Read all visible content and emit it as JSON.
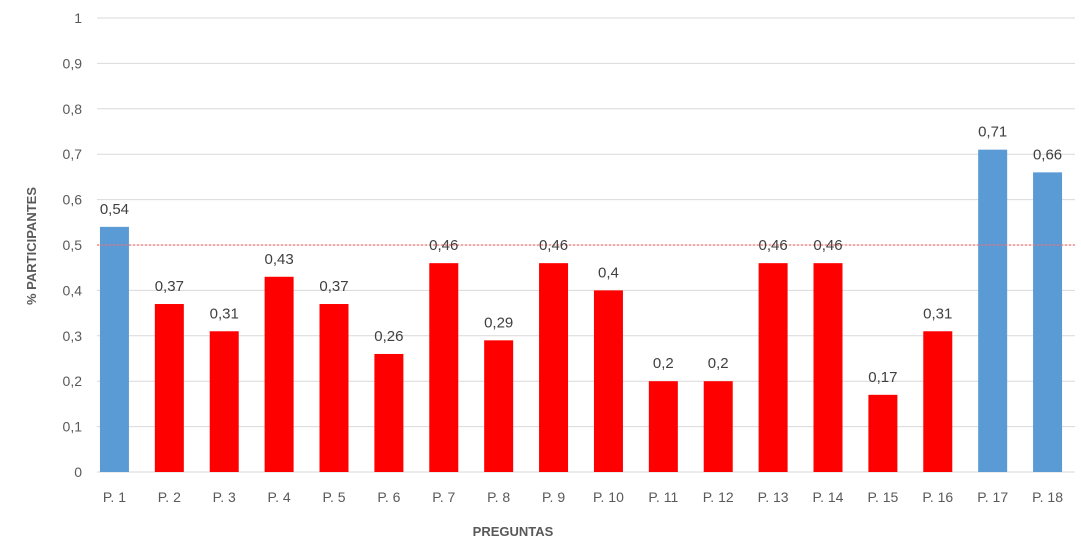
{
  "chart_data": {
    "type": "bar",
    "title": "",
    "xlabel": "PREGUNTAS",
    "ylabel": "% PARTICIPANTES",
    "categories": [
      "P. 1",
      "P. 2",
      "P. 3",
      "P. 4",
      "P. 5",
      "P. 6",
      "P. 7",
      "P. 8",
      "P. 9",
      "P. 10",
      "P. 11",
      "P. 12",
      "P. 13",
      "P. 14",
      "P. 15",
      "P. 16",
      "P. 17",
      "P. 18"
    ],
    "values": [
      0.54,
      0.37,
      0.31,
      0.43,
      0.37,
      0.26,
      0.46,
      0.29,
      0.46,
      0.4,
      0.2,
      0.2,
      0.46,
      0.46,
      0.17,
      0.31,
      0.71,
      0.66
    ],
    "data_labels": [
      "0,54",
      "0,37",
      "0,31",
      "0,43",
      "0,37",
      "0,26",
      "0,46",
      "0,29",
      "0,46",
      "0,4",
      "0,2",
      "0,2",
      "0,46",
      "0,46",
      "0,17",
      "0,31",
      "0,71",
      "0,66"
    ],
    "ylim": [
      0,
      1
    ],
    "y_ticks": [
      0,
      0.1,
      0.2,
      0.3,
      0.4,
      0.5,
      0.6,
      0.7,
      0.8,
      0.9,
      1
    ],
    "y_tick_labels": [
      "0",
      "0,1",
      "0,2",
      "0,3",
      "0,4",
      "0,5",
      "0,6",
      "0,7",
      "0,8",
      "0,9",
      "1"
    ],
    "reference_line": {
      "value": 0.5,
      "color": "#ff6b6b",
      "style": "dotted"
    },
    "colors": {
      "above_threshold": "#5b9bd5",
      "below_threshold": "#ff0000"
    },
    "grid": true,
    "legend": "none"
  }
}
